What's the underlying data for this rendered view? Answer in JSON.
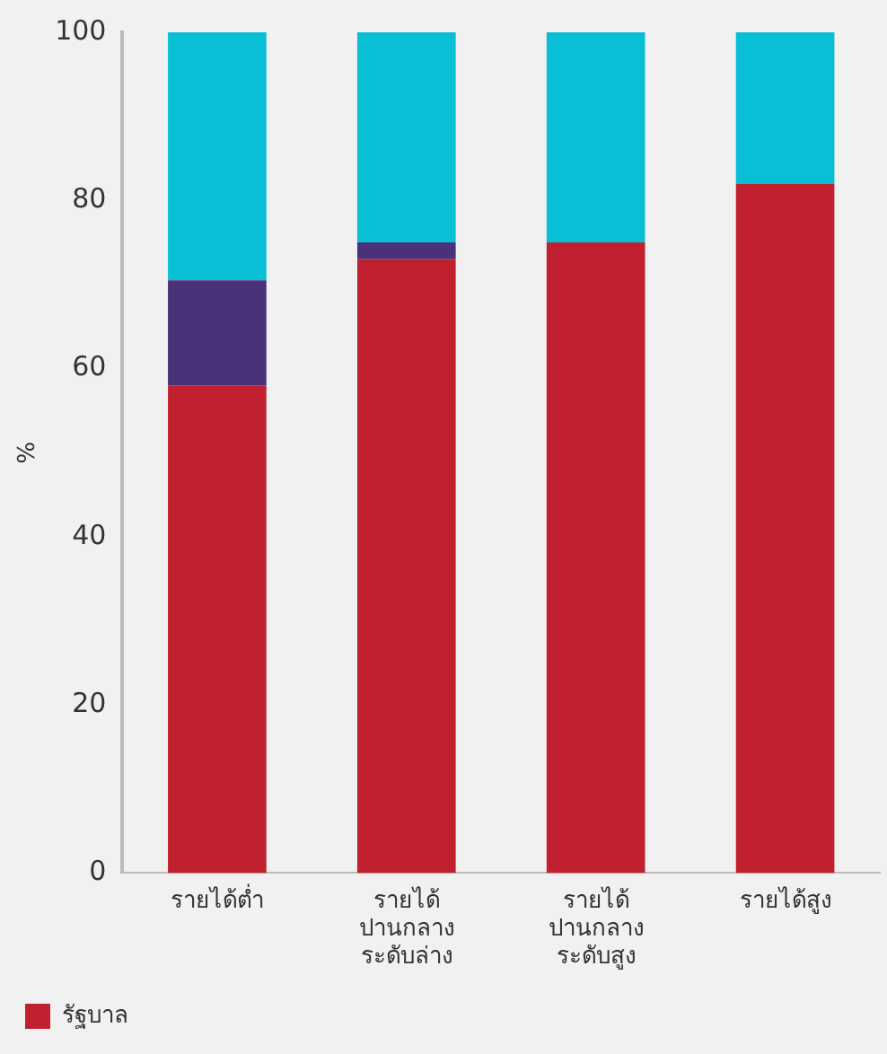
{
  "chart_data": {
    "type": "bar",
    "stacked": true,
    "ylabel": "%",
    "categories": [
      "รายได้ต่ำ",
      "รายได้\nปานกลาง\nระดับล่าง",
      "รายได้\nปานกลาง\nระดับสูง",
      "รายได้สูง"
    ],
    "series": [
      {
        "name": "รัฐบาล",
        "color": "#c1202f",
        "values": [
          58,
          73,
          75,
          82
        ]
      },
      {
        "color": "#4a327a",
        "values": [
          12.5,
          2,
          0,
          0
        ]
      },
      {
        "color": "#08bfd5",
        "values": [
          29.5,
          25,
          25,
          18
        ]
      }
    ],
    "ylim": [
      0,
      100
    ],
    "yticks": [
      0,
      20,
      40,
      60,
      80,
      100
    ],
    "grid": false,
    "legend": "bottom left"
  }
}
